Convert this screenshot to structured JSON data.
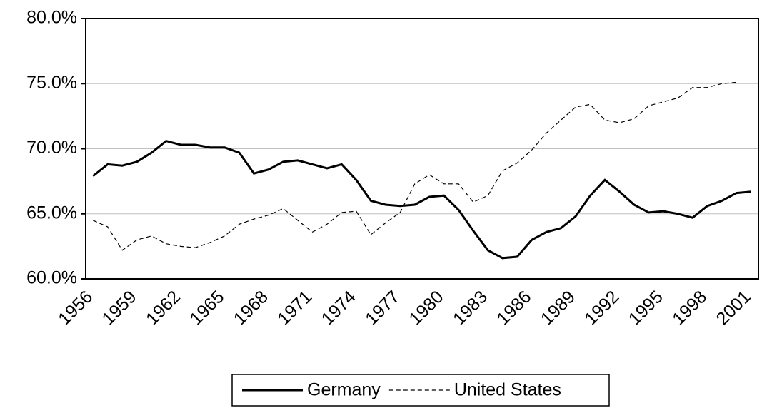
{
  "chart_data": {
    "type": "line",
    "categories": [
      "1956",
      null,
      null,
      "1959",
      null,
      null,
      "1962",
      null,
      null,
      "1965",
      null,
      null,
      "1968",
      null,
      null,
      "1971",
      null,
      null,
      "1974",
      null,
      null,
      "1977",
      null,
      null,
      "1980",
      null,
      null,
      "1983",
      null,
      null,
      "1986",
      null,
      null,
      "1989",
      null,
      null,
      "1992",
      null,
      null,
      "1995",
      null,
      null,
      "1998",
      null,
      null,
      "2001"
    ],
    "series": [
      {
        "name": "Germany",
        "color": "#000000",
        "dash": "solid",
        "values": [
          67.9,
          68.8,
          68.7,
          69.0,
          69.7,
          70.6,
          70.3,
          70.3,
          70.1,
          70.1,
          69.7,
          68.1,
          68.4,
          69.0,
          69.1,
          68.8,
          68.5,
          68.8,
          67.6,
          66.0,
          65.7,
          65.6,
          65.7,
          66.3,
          66.4,
          65.3,
          63.7,
          62.2,
          61.6,
          61.7,
          63.0,
          63.6,
          63.9,
          64.8,
          66.4,
          67.6,
          66.7,
          65.7,
          65.1,
          65.2,
          65.0,
          64.7,
          65.6,
          66.0,
          66.6,
          66.7
        ]
      },
      {
        "name": "United States",
        "color": "#000000",
        "dash": "dashed",
        "values": [
          64.5,
          64.0,
          62.2,
          63.0,
          63.3,
          62.7,
          62.5,
          62.4,
          62.8,
          63.3,
          64.2,
          64.6,
          64.9,
          65.4,
          64.5,
          63.6,
          64.2,
          65.1,
          65.2,
          63.4,
          64.3,
          65.1,
          67.3,
          68.0,
          67.3,
          67.3,
          65.9,
          66.4,
          68.3,
          68.9,
          69.9,
          71.2,
          72.2,
          73.2,
          73.4,
          72.2,
          72.0,
          72.3,
          73.3,
          73.6,
          73.9,
          74.7,
          74.7,
          75.0,
          75.1,
          null
        ]
      }
    ],
    "ylim": [
      60,
      80
    ],
    "yticks": [
      {
        "value": 60,
        "label": "60.0%"
      },
      {
        "value": 65,
        "label": "65.0%"
      },
      {
        "value": 70,
        "label": "70.0%"
      },
      {
        "value": 75,
        "label": "75.0%"
      },
      {
        "value": 80,
        "label": "80.0%"
      }
    ],
    "grid": true,
    "legend": "bottom"
  }
}
